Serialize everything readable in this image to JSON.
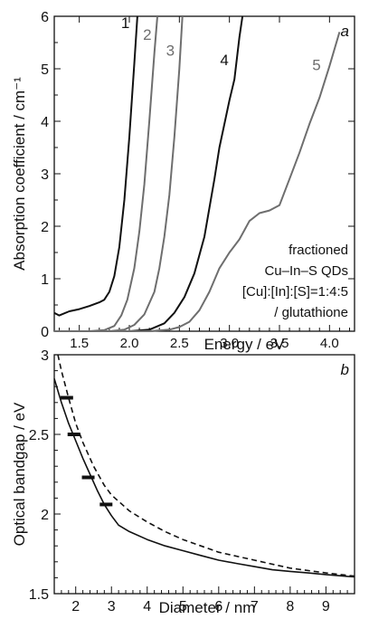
{
  "chart_data": [
    {
      "panel": "a",
      "type": "line",
      "xlabel": "Energy / eV",
      "ylabel": "Absorption coefficient / cm⁻¹",
      "xlim": [
        1.25,
        4.25
      ],
      "ylim": [
        0,
        6
      ],
      "xticks": [
        1.5,
        2.0,
        2.5,
        3.0,
        3.5,
        4.0
      ],
      "xticklabels": [
        "1.5",
        "2.0",
        "2.5",
        "3.0",
        "3.5",
        "4.0"
      ],
      "yticks": [
        0,
        1,
        2,
        3,
        4,
        5,
        6
      ],
      "yticklabels": [
        "0",
        "1",
        "2",
        "3",
        "4",
        "5",
        "6"
      ],
      "annotation": [
        "fractioned",
        "Cu–In–S QDs",
        "[Cu]:[In]:[S]=1:4:5",
        "/ glutathione"
      ],
      "series": [
        {
          "name": "1",
          "color": "#111111",
          "x": [
            1.25,
            1.3,
            1.4,
            1.5,
            1.6,
            1.7,
            1.75,
            1.8,
            1.85,
            1.9,
            1.95,
            2.0,
            2.05,
            2.08
          ],
          "y": [
            0.35,
            0.3,
            0.38,
            0.42,
            0.48,
            0.55,
            0.6,
            0.75,
            1.05,
            1.6,
            2.5,
            3.7,
            5.1,
            6.0
          ]
        },
        {
          "name": "2",
          "color": "#6e6e6e",
          "x": [
            1.25,
            1.6,
            1.75,
            1.85,
            1.92,
            1.98,
            2.05,
            2.1,
            2.15,
            2.2,
            2.25,
            2.28
          ],
          "y": [
            0.0,
            0.0,
            0.02,
            0.1,
            0.3,
            0.6,
            1.2,
            1.9,
            2.8,
            4.0,
            5.3,
            6.0
          ]
        },
        {
          "name": "3",
          "color": "#6e6e6e",
          "x": [
            1.25,
            1.8,
            1.95,
            2.05,
            2.15,
            2.25,
            2.3,
            2.35,
            2.4,
            2.45,
            2.5,
            2.53
          ],
          "y": [
            0.0,
            0.0,
            0.03,
            0.12,
            0.32,
            0.75,
            1.2,
            1.8,
            2.6,
            3.7,
            5.0,
            6.0
          ]
        },
        {
          "name": "4",
          "color": "#111111",
          "x": [
            1.25,
            2.0,
            2.2,
            2.35,
            2.45,
            2.55,
            2.65,
            2.75,
            2.85,
            2.9,
            3.0,
            3.05,
            3.1,
            3.13
          ],
          "y": [
            0.0,
            0.0,
            0.03,
            0.15,
            0.35,
            0.65,
            1.1,
            1.8,
            2.9,
            3.5,
            4.4,
            4.8,
            5.6,
            6.0
          ]
        },
        {
          "name": "5",
          "color": "#6e6e6e",
          "x": [
            1.25,
            2.2,
            2.4,
            2.5,
            2.6,
            2.7,
            2.8,
            2.9,
            3.0,
            3.1,
            3.2,
            3.3,
            3.4,
            3.5,
            3.6,
            3.7,
            3.8,
            3.9,
            4.0,
            4.1
          ],
          "y": [
            0.0,
            0.0,
            0.03,
            0.08,
            0.18,
            0.4,
            0.75,
            1.2,
            1.5,
            1.75,
            2.1,
            2.25,
            2.3,
            2.4,
            2.9,
            3.4,
            3.95,
            4.45,
            5.05,
            5.7
          ]
        }
      ]
    },
    {
      "panel": "b",
      "type": "line",
      "xlabel": "Diameter / nm",
      "ylabel": "Optical bandgap / eV",
      "xlim": [
        1.4,
        9.8
      ],
      "ylim": [
        1.5,
        3.0
      ],
      "xticks": [
        2,
        3,
        4,
        5,
        6,
        7,
        8,
        9
      ],
      "xticklabels": [
        "2",
        "3",
        "4",
        "5",
        "6",
        "7",
        "8",
        "9"
      ],
      "yticks": [
        1.5,
        2.0,
        2.5,
        3.0
      ],
      "yticklabels": [
        "1.5",
        "2",
        "2.5",
        "3"
      ],
      "series": [
        {
          "style": "solid",
          "x": [
            1.4,
            1.6,
            1.8,
            2.0,
            2.2,
            2.4,
            2.6,
            2.8,
            3.0,
            3.2,
            3.5,
            4.0,
            4.5,
            5.0,
            5.5,
            6.0,
            6.5,
            7.0,
            7.5,
            8.0,
            8.5,
            9.0,
            9.5,
            9.8
          ],
          "y": [
            2.85,
            2.7,
            2.57,
            2.46,
            2.35,
            2.25,
            2.15,
            2.06,
            1.99,
            1.93,
            1.89,
            1.84,
            1.8,
            1.77,
            1.74,
            1.71,
            1.69,
            1.67,
            1.65,
            1.64,
            1.63,
            1.62,
            1.61,
            1.605
          ]
        },
        {
          "style": "dashed",
          "x": [
            1.5,
            1.6,
            1.8,
            2.0,
            2.2,
            2.5,
            2.8,
            3.0,
            3.5,
            4.0,
            4.5,
            5.0,
            6.0,
            7.0,
            8.0,
            9.0,
            9.8
          ],
          "y": [
            3.0,
            2.9,
            2.73,
            2.57,
            2.45,
            2.3,
            2.18,
            2.12,
            2.02,
            1.95,
            1.89,
            1.84,
            1.76,
            1.71,
            1.66,
            1.63,
            1.61
          ]
        }
      ],
      "markers": [
        {
          "x": 1.75,
          "y": 2.73
        },
        {
          "x": 1.95,
          "y": 2.5
        },
        {
          "x": 2.35,
          "y": 2.23
        },
        {
          "x": 2.85,
          "y": 2.06
        }
      ]
    }
  ],
  "panel_a": {
    "panel_letter": "a",
    "xlabel": "Energy / eV",
    "ylabel": "Absorption coefficient / cm⁻¹",
    "annotation_line1": "fractioned",
    "annotation_line2": "Cu–In–S QDs",
    "annotation_line3": "[Cu]:[In]:[S]=1:4:5",
    "annotation_line4": "/ glutathione"
  },
  "panel_b": {
    "panel_letter": "b",
    "xlabel": "Diameter / nm",
    "ylabel": "Optical bandgap / eV"
  }
}
